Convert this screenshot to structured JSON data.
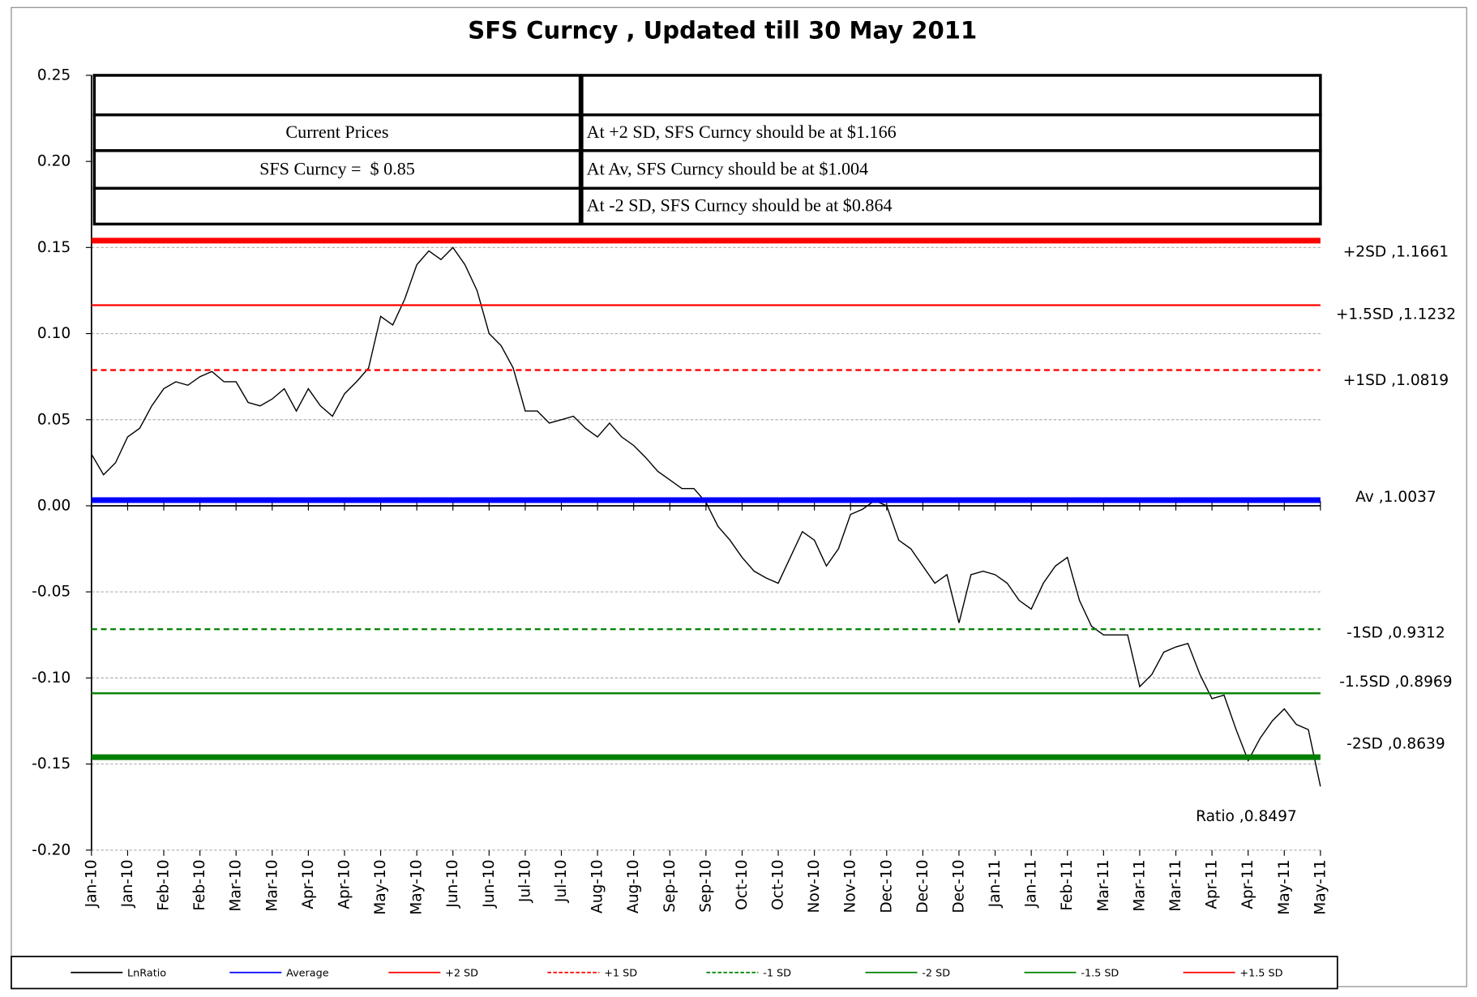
{
  "chart_data": {
    "type": "line",
    "title": "SFS Curncy , Updated till 30 May 2011",
    "categories": [
      "Jan-10",
      null,
      null,
      "Jan-10",
      null,
      null,
      "Feb-10",
      null,
      null,
      "Feb-10",
      null,
      null,
      "Mar-10",
      null,
      null,
      "Mar-10",
      null,
      null,
      "Apr-10",
      null,
      null,
      "Apr-10",
      null,
      null,
      "May-10",
      null,
      null,
      "May-10",
      null,
      null,
      "Jun-10",
      null,
      null,
      "Jun-10",
      null,
      null,
      "Jul-10",
      null,
      null,
      "Jul-10",
      null,
      null,
      "Aug-10",
      null,
      null,
      "Aug-10",
      null,
      null,
      "Sep-10",
      null,
      null,
      "Sep-10",
      null,
      null,
      "Oct-10",
      null,
      null,
      "Oct-10",
      null,
      null,
      "Nov-10",
      null,
      null,
      "Nov-10",
      null,
      null,
      "Dec-10",
      null,
      null,
      "Dec-10",
      null,
      null,
      "Dec-10",
      null,
      null,
      "Jan-11",
      null,
      null,
      "Jan-11",
      null,
      null,
      "Feb-11",
      null,
      null,
      "Mar-11",
      null,
      null,
      "Mar-11",
      null,
      null,
      "Mar-11",
      null,
      null,
      "Apr-11",
      null,
      null,
      "Apr-11",
      null,
      null,
      "May-11",
      null,
      null,
      "May-11"
    ],
    "series": [
      {
        "name": "LnRatio",
        "color": "#000000",
        "width": 1.2,
        "label": "Ratio ,0.8497",
        "values": [
          0.03,
          0.018,
          0.025,
          0.04,
          0.045,
          0.058,
          0.068,
          0.072,
          0.07,
          0.075,
          0.078,
          0.072,
          0.072,
          0.06,
          0.058,
          0.062,
          0.068,
          0.055,
          0.068,
          0.058,
          0.052,
          0.065,
          0.072,
          0.08,
          0.11,
          0.105,
          0.12,
          0.14,
          0.148,
          0.143,
          0.15,
          0.14,
          0.125,
          0.1,
          0.093,
          0.08,
          0.055,
          0.055,
          0.048,
          0.05,
          0.052,
          0.045,
          0.04,
          0.048,
          0.04,
          0.035,
          0.028,
          0.02,
          0.015,
          0.01,
          0.01,
          0.002,
          -0.012,
          -0.02,
          -0.03,
          -0.038,
          -0.042,
          -0.045,
          -0.03,
          -0.015,
          -0.02,
          -0.035,
          -0.025,
          -0.005,
          -0.002,
          0.003,
          0.0,
          -0.02,
          -0.025,
          -0.035,
          -0.045,
          -0.04,
          -0.068,
          -0.04,
          -0.038,
          -0.04,
          -0.045,
          -0.055,
          -0.06,
          -0.045,
          -0.035,
          -0.03,
          -0.055,
          -0.07,
          -0.075,
          -0.075,
          -0.075,
          -0.105,
          -0.098,
          -0.085,
          -0.082,
          -0.08,
          -0.098,
          -0.112,
          -0.11,
          -0.13,
          -0.148,
          -0.135,
          -0.125,
          -0.118,
          -0.127,
          -0.13,
          -0.163
        ]
      },
      {
        "name": "Average",
        "color": "#0000ff",
        "width": 6,
        "value": 0.0033,
        "label": "Av ,1.0037"
      },
      {
        "name": "+2 SD",
        "color": "#ff0000",
        "width": 6,
        "value": 0.154,
        "label": "+2SD ,1.1661"
      },
      {
        "name": "+1 SD",
        "color": "#ff0000",
        "width": 2,
        "dashed": true,
        "value": 0.0788,
        "label": "+1SD ,1.0819"
      },
      {
        "name": "-1 SD",
        "color": "#008000",
        "width": 2,
        "dashed": true,
        "value": -0.0717,
        "label": "-1SD ,0.9312"
      },
      {
        "name": "-2 SD",
        "color": "#008000",
        "width": 6,
        "value": -0.146,
        "label": "-2SD ,0.8639"
      },
      {
        "name": "-1.5 SD",
        "color": "#008000",
        "width": 2,
        "value": -0.1089,
        "label": "-1.5SD ,0.8969"
      },
      {
        "name": "+1.5 SD",
        "color": "#ff0000",
        "width": 2,
        "value": 0.1165,
        "label": "+1.5SD ,1.1232"
      }
    ],
    "ylim": [
      -0.2,
      0.25
    ],
    "yticks": [
      0.25,
      {
        "value": 0.2,
        "label": "0.20"
      },
      0.15,
      {
        "value": 0.1,
        "label": "0.10"
      },
      0.05,
      {
        "value": 0,
        "label": "0.00"
      },
      -0.05,
      {
        "value": -0.1,
        "label": "-0.10"
      },
      -0.15,
      {
        "value": -0.2,
        "label": "-0.20"
      }
    ],
    "grid": true,
    "legend": "bottom"
  },
  "table": {
    "rows": [
      [
        null,
        null
      ],
      [
        "Current Prices",
        "At +2 SD, SFS Curncy should be at $1.166"
      ],
      [
        "SFS Curncy =  $ 0.85",
        "At Av, SFS Curncy should be at $1.004"
      ],
      [
        null,
        "At -2 SD, SFS Curncy should be at $0.864"
      ]
    ]
  }
}
